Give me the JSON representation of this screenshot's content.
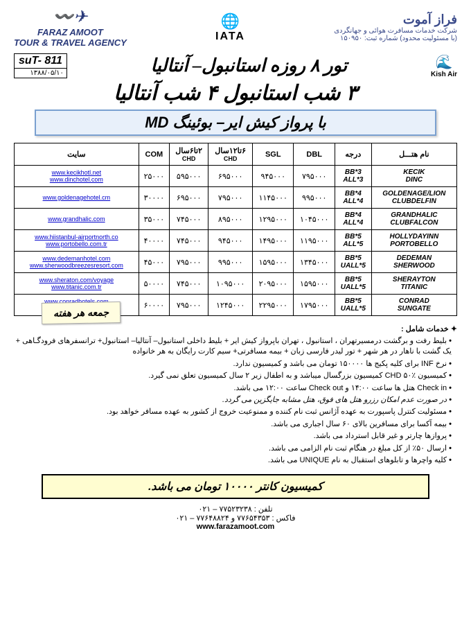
{
  "header": {
    "agency_name_en": "FARAZ AMOOT",
    "agency_sub_en": "TOUR & TRAVEL AGENCY",
    "iata": "IATA",
    "faraz_fa": "فراز آموت",
    "faraz_sub1": "شرکت خدمات مسافرت هوائی و جهانگردی",
    "faraz_sub2": "(با مسئولیت محدود) شماره ثبت: ۱۵۰۹۵۰"
  },
  "sut": {
    "code": "suT- 811",
    "date": "۱۳۸۸/۰۵/۱۰"
  },
  "kish_air": "Kish Air",
  "titles": {
    "line1": "تور ۸ روزه استانبول– آنتالیا",
    "line2": "۳ شب استانبول ۴ شب آنتالیا",
    "line3": "با پرواز کیش ایر– بوئینگ MD"
  },
  "table": {
    "headers": {
      "hotel": "نام هتـــل",
      "grade": "درجه",
      "dbl": "DBL",
      "sgl": "SGL",
      "chd612": "۶تا۱۲سال",
      "chd612_sub": "CHD",
      "chd26": "۲تا۶سال",
      "chd26_sub": "CHD",
      "com": "COM",
      "site": "سایت"
    },
    "rows": [
      {
        "hotels": [
          "KECIK",
          "DINC"
        ],
        "grades": [
          "3*BB",
          "3*ALL"
        ],
        "dbl": "۷۹۵۰۰۰",
        "sgl": "۹۴۵۰۰۰",
        "chd612": "۶۹۵۰۰۰",
        "chd26": "۵۹۵۰۰۰",
        "com": "۲۵۰۰۰",
        "sites": [
          "www.kecikhotl.net",
          "www.dinchotel.com"
        ]
      },
      {
        "hotels": [
          "GOLDENAGE/LION",
          "CLUBDELFIN"
        ],
        "grades": [
          "4*BB",
          "4*ALL"
        ],
        "dbl": "۹۹۵۰۰۰",
        "sgl": "۱۱۴۵۰۰۰",
        "chd612": "۷۹۵۰۰۰",
        "chd26": "۶۹۵۰۰۰",
        "com": "۳۰۰۰۰",
        "sites": [
          "www.goldenagehotel.cm",
          ""
        ]
      },
      {
        "hotels": [
          "GRANDHALIC",
          "CLUBFALCON"
        ],
        "grades": [
          "4*BB",
          "4*ALL"
        ],
        "dbl": "۱۰۴۵۰۰۰",
        "sgl": "۱۲۹۵۰۰۰",
        "chd612": "۸۹۵۰۰۰",
        "chd26": "۷۴۵۰۰۰",
        "com": "۳۵۰۰۰",
        "sites": [
          "www.grandhalic.com",
          ""
        ]
      },
      {
        "hotels": [
          "HOLLYDAYINN",
          "PORTOBELLO"
        ],
        "grades": [
          "5*BB",
          "5*ALL"
        ],
        "dbl": "۱۱۹۵۰۰۰",
        "sgl": "۱۴۹۵۰۰۰",
        "chd612": "۹۴۵۰۰۰",
        "chd26": "۷۴۵۰۰۰",
        "com": "۴۰۰۰۰",
        "sites": [
          "www.hiistanbul-airportnorth.co",
          "www.portobello.com.tr"
        ]
      },
      {
        "hotels": [
          "DEDEMAN",
          "SHERWOOD"
        ],
        "grades": [
          "5*BB",
          "5*UALL"
        ],
        "dbl": "۱۳۴۵۰۰۰",
        "sgl": "۱۵۹۵۰۰۰",
        "chd612": "۹۹۵۰۰۰",
        "chd26": "۷۹۵۰۰۰",
        "com": "۴۵۰۰۰",
        "sites": [
          "www.dedemanhotel.com",
          "www.sherwoodbreezesresort.com"
        ]
      },
      {
        "hotels": [
          "SHERAYTON",
          "TITANIC"
        ],
        "grades": [
          "5*BB",
          "5*UALL"
        ],
        "dbl": "۱۵۹۵۰۰۰",
        "sgl": "۲۰۹۵۰۰۰",
        "chd612": "۱۰۹۵۰۰۰",
        "chd26": "۷۴۵۰۰۰",
        "com": "۵۰۰۰۰",
        "sites": [
          "www.sheraton.com/voyage",
          "www.titanic.com.tr"
        ]
      },
      {
        "hotels": [
          "CONRAD",
          "SUNGATE"
        ],
        "grades": [
          "5*BB",
          "5*UALL"
        ],
        "dbl": "۱۷۹۵۰۰۰",
        "sgl": "۲۲۹۵۰۰۰",
        "chd612": "۱۲۴۵۰۰۰",
        "chd26": "۷۹۵۰۰۰",
        "com": "۶۰۰۰۰",
        "sites": [
          "www.conradhotels.com",
          "www.sungatehotels.com"
        ]
      }
    ]
  },
  "services": {
    "title": "✦ خدمات شامل :",
    "items": [
      "بلیط رفت و برگشت درمسیرتهران ، استانبول ، تهران باپرواز کیش ایر + بلیط داخلی استانبول– آنتالیا– استانبول+ ترانسفرهای فرودگـاهی + یک گشت با ناهار در هر شهر + تور لیدر فارسی زبان + بیمه مسافرتی+ سیم کارت رایگان به هر خانواده",
      "نرخ INF برای کلیه پکیج ها ۱۵۰۰۰۰ تومان می باشد و کمیسیون ندارد.",
      "کمیسیون CHD ۵۰٪ کمیسیون بزرگسال میباشد و به اطفال زیر ۲ سال کمیسیون تعلق نمی گیرد.",
      "Check in هتل ها ساعت ۱۴:۰۰ و Check out ساعت ۱۲:۰۰ می باشد.",
      "در صورت عدم امکان رزرو هتل های فوق، هتل مشابه جایگزین می گردد.",
      "مسئولیت کنترل پاسپورت به عهده آژانس ثبت نام کننده و ممنوعیت خروج از کشور به عهده مسافر خواهد بود.",
      "بیمه آکسا برای مسافرین بالای ۶۰ سال اجباری می باشد.",
      "پروازها چارتر و غیر قابل استرداد می باشد.",
      "ارسال ۵۰٪ از کل مبلغ در هنگام ثبت نام الزامی می باشد.",
      "کلیه واچرها و تابلوهای استقبال به نام UNIQUE می باشد."
    ]
  },
  "friday": "جمعه هر هفته",
  "commission": "کمیسیون کانتر ۱۰۰۰۰ تومان می باشد.",
  "footer": {
    "tel": "تلفن : ۷۷۵۲۳۲۳۸ – ۰۲۱",
    "fax": "فاکس : ۷۷۶۵۴۳۵۳ و ۷۷۶۴۸۸۲۴ – ۰۲۱",
    "web": "www.farazamoot.com"
  }
}
